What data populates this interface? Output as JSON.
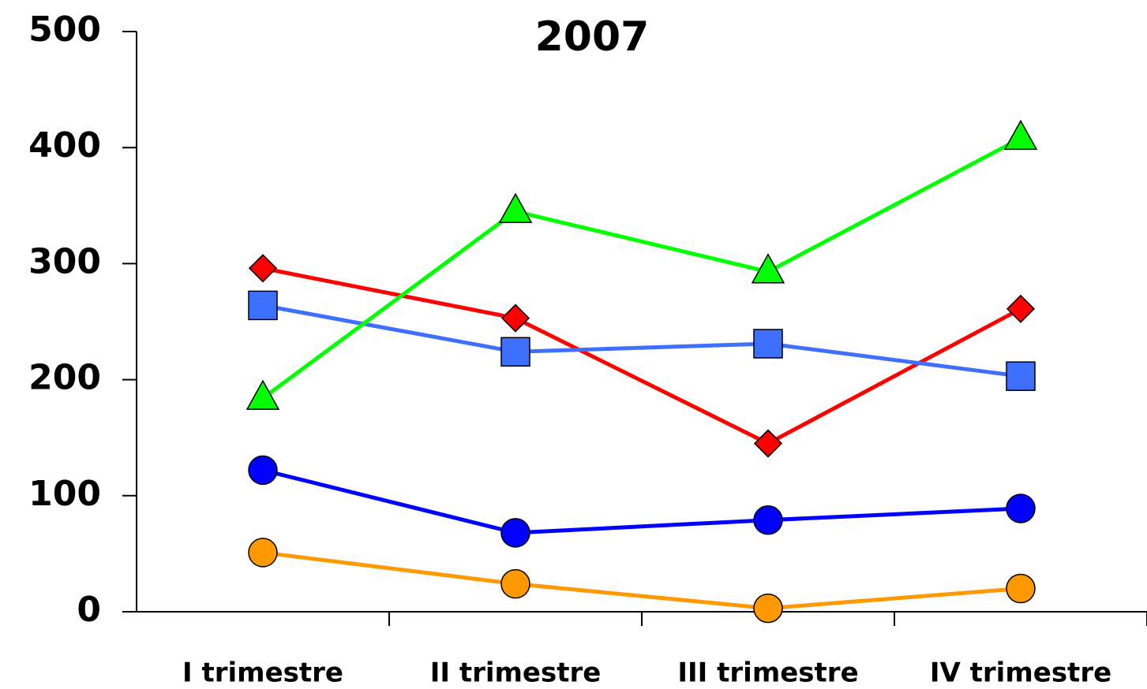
{
  "chart_data": {
    "type": "line",
    "title": "2007",
    "categories": [
      "I trimestre",
      "II trimestre",
      "III trimestre",
      "IV trimestre"
    ],
    "series": [
      {
        "color": "#ff0000",
        "marker": "diamond",
        "values": [
          296,
          253,
          145,
          261
        ]
      },
      {
        "color": "#3f6fff",
        "marker": "square",
        "values": [
          264,
          224,
          231,
          203
        ]
      },
      {
        "color": "#00ff00",
        "marker": "triangle",
        "values": [
          184,
          345,
          293,
          408
        ]
      },
      {
        "color": "#0000ff",
        "marker": "circle",
        "values": [
          122,
          68,
          79,
          89
        ]
      },
      {
        "color": "#ff9900",
        "marker": "circle",
        "values": [
          51,
          24,
          3,
          20
        ]
      }
    ],
    "ylim": [
      0,
      500
    ],
    "yticks": [
      0,
      100,
      200,
      300,
      400,
      500
    ],
    "grid": false
  }
}
